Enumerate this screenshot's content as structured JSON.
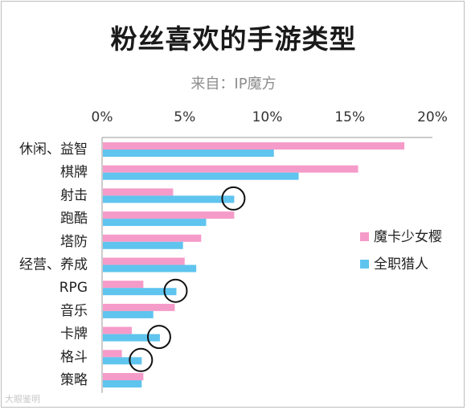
{
  "title": "粉丝喜欢的手游类型",
  "subtitle": "来自：IP魔方",
  "watermark": "大眼鉴明",
  "chart_data": {
    "type": "bar",
    "orientation": "horizontal",
    "categories": [
      "休闲、益智",
      "棋牌",
      "射击",
      "跑酷",
      "塔防",
      "经营、养成",
      "RPG",
      "音乐",
      "卡牌",
      "格斗",
      "策略"
    ],
    "series": [
      {
        "name": "魔卡少女樱",
        "color": "#f59bc9",
        "values": [
          18.3,
          15.5,
          4.3,
          8.0,
          6.0,
          5.0,
          2.5,
          4.4,
          1.8,
          1.2,
          2.5
        ]
      },
      {
        "name": "全职猎人",
        "color": "#5fc4ee",
        "values": [
          10.4,
          11.9,
          8.0,
          6.3,
          4.9,
          5.7,
          4.5,
          3.1,
          3.5,
          2.4,
          2.4
        ]
      }
    ],
    "xlim": [
      0,
      20
    ],
    "x_ticks": [
      "0%",
      "5%",
      "10%",
      "15%",
      "20%"
    ],
    "x_tick_values": [
      0,
      5,
      10,
      15,
      20
    ],
    "axis_position": "top",
    "legend_position": "right",
    "circled_categories": [
      "射击",
      "RPG",
      "卡牌",
      "格斗"
    ],
    "grid": false
  }
}
